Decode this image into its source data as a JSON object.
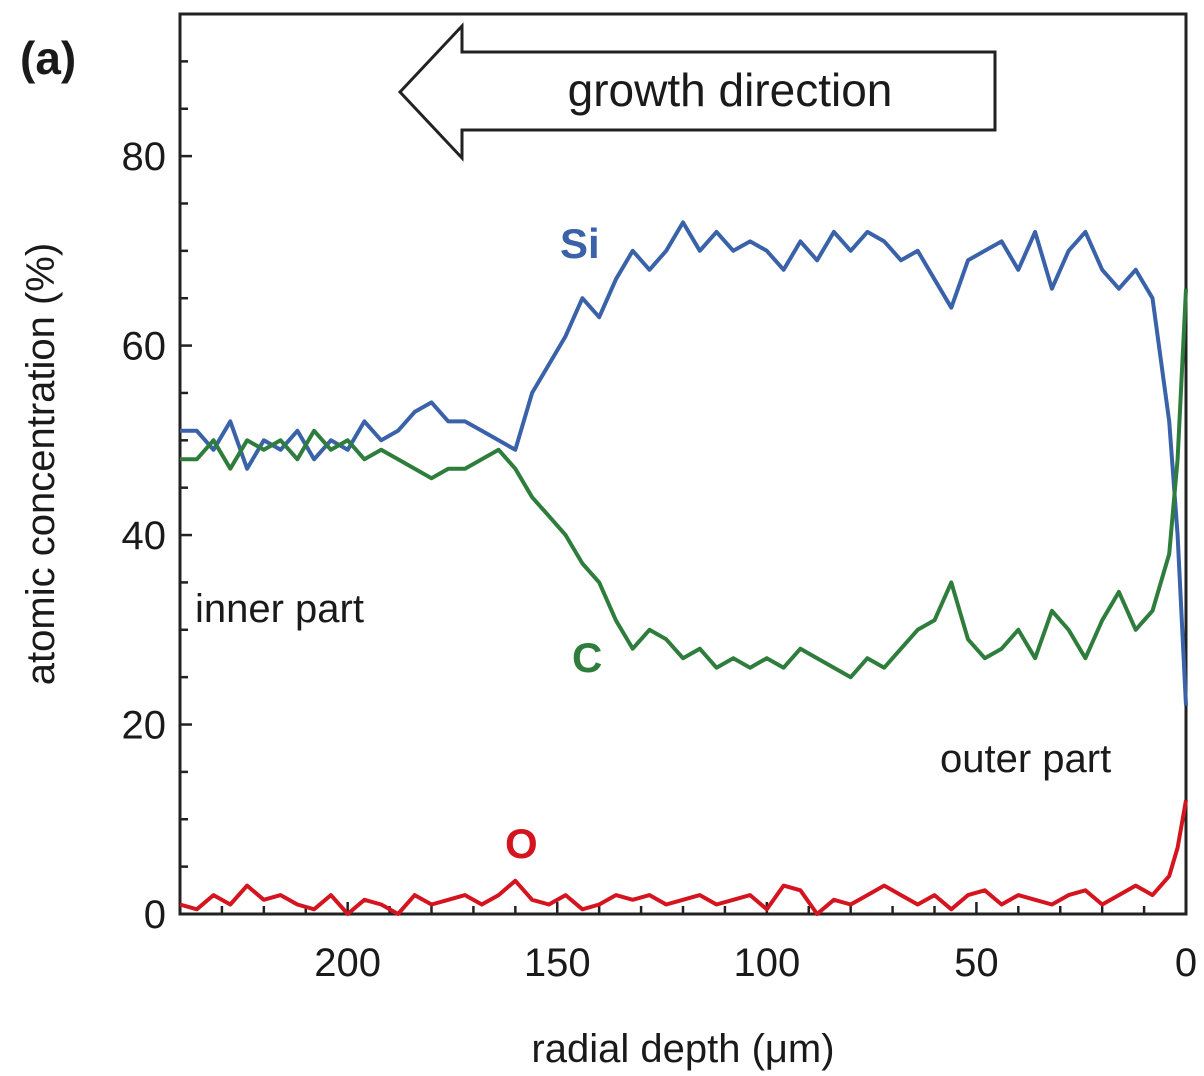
{
  "chart_data": {
    "type": "line",
    "panel_label": "(a)",
    "xlabel": "radial depth (μm)",
    "ylabel": "atomic concentration (%)",
    "xlim": [
      240,
      0
    ],
    "ylim": [
      0,
      95
    ],
    "x_reversed": true,
    "xticks": [
      200,
      150,
      100,
      50,
      0
    ],
    "yticks": [
      0,
      20,
      40,
      60,
      80
    ],
    "annotations": {
      "arrow": "growth direction",
      "inner": "inner part",
      "outer": "outer part"
    },
    "series": [
      {
        "name": "Si",
        "color": "#3a62a8",
        "x": [
          240,
          236,
          232,
          228,
          224,
          220,
          216,
          212,
          208,
          204,
          200,
          196,
          192,
          188,
          184,
          180,
          176,
          172,
          168,
          164,
          160,
          156,
          152,
          148,
          144,
          140,
          136,
          132,
          128,
          124,
          120,
          116,
          112,
          108,
          104,
          100,
          96,
          92,
          88,
          84,
          80,
          76,
          72,
          68,
          64,
          60,
          56,
          52,
          48,
          44,
          40,
          36,
          32,
          28,
          24,
          20,
          16,
          12,
          8,
          4,
          2,
          0
        ],
        "values": [
          51,
          51,
          49,
          52,
          47,
          50,
          49,
          51,
          48,
          50,
          49,
          52,
          50,
          51,
          53,
          54,
          52,
          52,
          51,
          50,
          49,
          55,
          58,
          61,
          65,
          63,
          67,
          70,
          68,
          70,
          73,
          70,
          72,
          70,
          71,
          70,
          68,
          71,
          69,
          72,
          70,
          72,
          71,
          69,
          70,
          67,
          64,
          69,
          70,
          71,
          68,
          72,
          66,
          70,
          72,
          68,
          66,
          68,
          65,
          52,
          40,
          22
        ]
      },
      {
        "name": "C",
        "color": "#2f7d3c",
        "x": [
          240,
          236,
          232,
          228,
          224,
          220,
          216,
          212,
          208,
          204,
          200,
          196,
          192,
          188,
          184,
          180,
          176,
          172,
          168,
          164,
          160,
          156,
          152,
          148,
          144,
          140,
          136,
          132,
          128,
          124,
          120,
          116,
          112,
          108,
          104,
          100,
          96,
          92,
          88,
          84,
          80,
          76,
          72,
          68,
          64,
          60,
          56,
          52,
          48,
          44,
          40,
          36,
          32,
          28,
          24,
          20,
          16,
          12,
          8,
          4,
          2,
          0
        ],
        "values": [
          48,
          48,
          50,
          47,
          50,
          49,
          50,
          48,
          51,
          49,
          50,
          48,
          49,
          48,
          47,
          46,
          47,
          47,
          48,
          49,
          47,
          44,
          42,
          40,
          37,
          35,
          31,
          28,
          30,
          29,
          27,
          28,
          26,
          27,
          26,
          27,
          26,
          28,
          27,
          26,
          25,
          27,
          26,
          28,
          30,
          31,
          35,
          29,
          27,
          28,
          30,
          27,
          32,
          30,
          27,
          31,
          34,
          30,
          32,
          38,
          48,
          66
        ]
      },
      {
        "name": "O",
        "color": "#d4141e",
        "x": [
          240,
          236,
          232,
          228,
          224,
          220,
          216,
          212,
          208,
          204,
          200,
          196,
          192,
          188,
          184,
          180,
          176,
          172,
          168,
          164,
          160,
          156,
          152,
          148,
          144,
          140,
          136,
          132,
          128,
          124,
          120,
          116,
          112,
          108,
          104,
          100,
          96,
          92,
          88,
          84,
          80,
          76,
          72,
          68,
          64,
          60,
          56,
          52,
          48,
          44,
          40,
          36,
          32,
          28,
          24,
          20,
          16,
          12,
          8,
          4,
          2,
          0
        ],
        "values": [
          1,
          0.5,
          2,
          1,
          3,
          1.5,
          2,
          1,
          0.5,
          2,
          0,
          1.5,
          1,
          0,
          2,
          1,
          1.5,
          2,
          1,
          2,
          3.5,
          1.5,
          1,
          2,
          0.5,
          1,
          2,
          1.5,
          2,
          1,
          1.5,
          2,
          1,
          1.5,
          2,
          0.5,
          3,
          2.5,
          0,
          1.5,
          1,
          2,
          3,
          2,
          1,
          2,
          0.5,
          2,
          2.5,
          1,
          2,
          1.5,
          1,
          2,
          2.5,
          1,
          2,
          3,
          2,
          4,
          7,
          12
        ]
      }
    ]
  }
}
